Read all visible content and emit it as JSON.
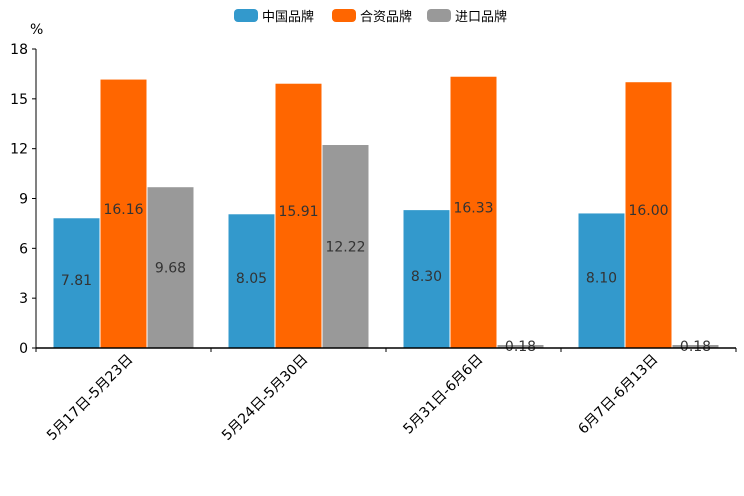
{
  "chart_data": {
    "type": "bar",
    "title": "",
    "xlabel": "",
    "ylabel": "%",
    "ylim": [
      0,
      18
    ],
    "yticks": [
      0,
      3,
      6,
      9,
      12,
      15,
      18
    ],
    "grid": false,
    "legend_position": "top-center",
    "categories": [
      "5月17日-5月23日",
      "5月24日-5月30日",
      "5月31日-6月6日",
      "6月7日-6月13日"
    ],
    "series": [
      {
        "name": "中国品牌",
        "color": "#3399cc",
        "values": [
          7.81,
          8.05,
          8.3,
          8.1
        ]
      },
      {
        "name": "合资品牌",
        "color": "#ff6600",
        "values": [
          16.16,
          15.91,
          16.33,
          16.0
        ]
      },
      {
        "name": "进口品牌",
        "color": "#999999",
        "values": [
          9.68,
          12.22,
          0.18,
          0.18
        ]
      }
    ]
  }
}
